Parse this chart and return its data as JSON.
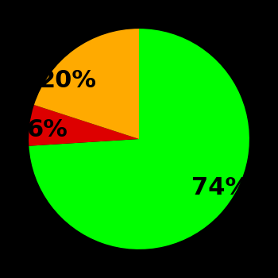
{
  "slices": [
    74,
    6,
    20
  ],
  "labels": [
    "74%",
    "6%",
    "20%"
  ],
  "colors": [
    "#00ff00",
    "#dd0000",
    "#ffaa00"
  ],
  "background_color": "#000000",
  "startangle": 90,
  "text_color": "#000000",
  "font_size": 22,
  "font_weight": "bold",
  "labeldistance": 0.65
}
